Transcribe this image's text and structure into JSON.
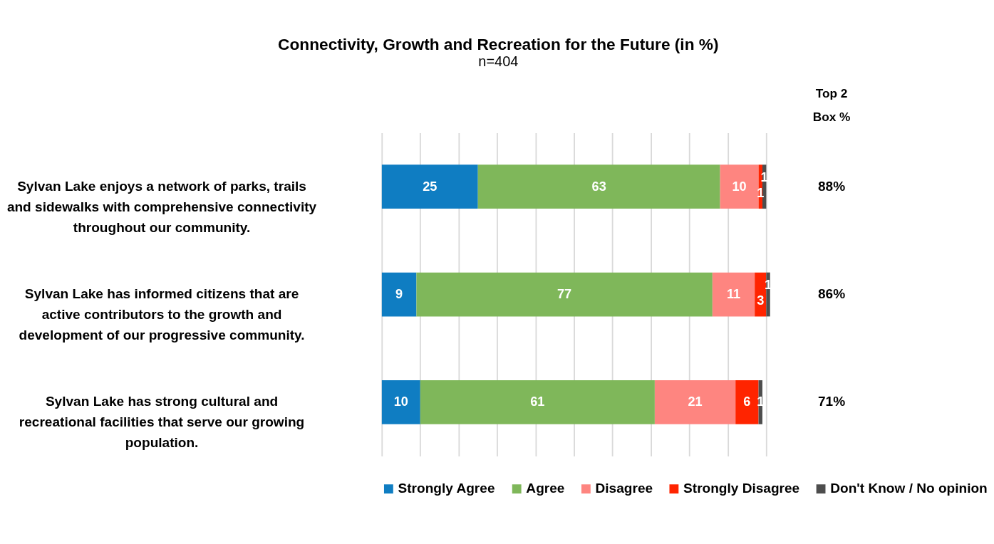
{
  "chart_data": {
    "type": "bar",
    "orientation": "horizontal",
    "stacked": true,
    "title": "Connectivity, Growth and Recreation for the Future (in %)",
    "subtitle": "n=404",
    "categories": [
      "Sylvan Lake enjoys a network of parks, trails and sidewalks with comprehensive connectivity throughout our community.",
      "Sylvan Lake has informed citizens that are active contributors to the growth and development of our progressive community.",
      "Sylvan Lake has strong cultural and recreational facilities that serve our growing population."
    ],
    "series": [
      {
        "name": "Strongly Agree",
        "color": "#0f7dc2",
        "values": [
          25,
          9,
          10
        ]
      },
      {
        "name": "Agree",
        "color": "#7fb75a",
        "values": [
          63,
          77,
          61
        ]
      },
      {
        "name": "Disagree",
        "color": "#fe8580",
        "values": [
          10,
          11,
          21
        ]
      },
      {
        "name": "Strongly Disagree",
        "color": "#ff2400",
        "values": [
          1,
          3,
          6
        ]
      },
      {
        "name": "Don't Know / No opinion",
        "color": "#4d4d4d",
        "values": [
          1,
          1,
          1
        ]
      }
    ],
    "xlim": [
      0,
      101
    ],
    "xticks": [
      {
        "value": 0,
        "label": null
      },
      {
        "value": 10,
        "label": null
      },
      {
        "value": 20,
        "label": null
      },
      {
        "value": 30,
        "label": null
      },
      {
        "value": 40,
        "label": null
      },
      {
        "value": 50,
        "label": null
      },
      {
        "value": 60,
        "label": null
      },
      {
        "value": 70,
        "label": null
      },
      {
        "value": 80,
        "label": null
      },
      {
        "value": 90,
        "label": null
      },
      {
        "value": 100,
        "label": null
      }
    ],
    "grid": "x",
    "tick_labels": false,
    "data_labels": true,
    "legend": "bottom",
    "annotations": [
      "Top 2 Box %",
      "88%",
      "86%",
      "71%"
    ]
  }
}
